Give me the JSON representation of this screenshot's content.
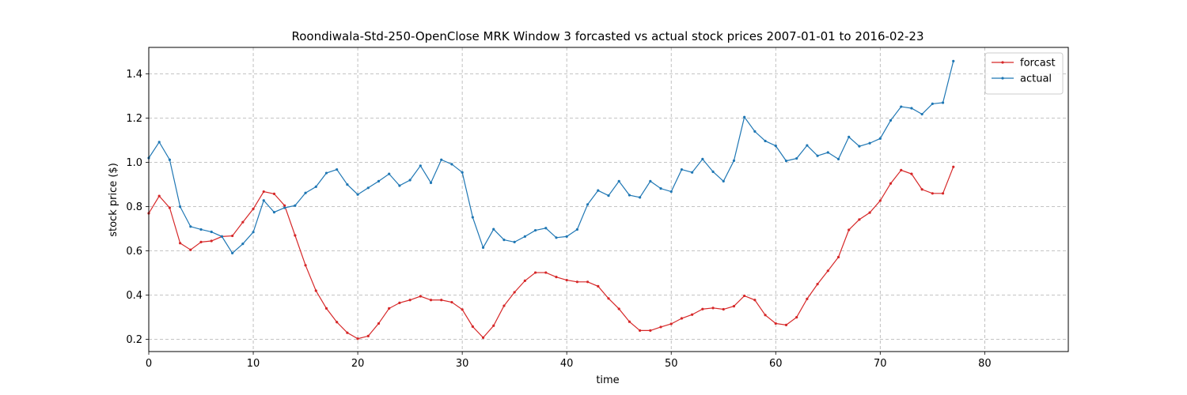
{
  "chart_data": {
    "type": "line",
    "title": "Roondiwala-Std-250-OpenClose MRK Window 3 forcasted vs actual stock prices 2007-01-01 to 2016-02-23",
    "xlabel": "time",
    "ylabel": "stock price ($)",
    "xlim": [
      0,
      88
    ],
    "ylim": [
      0.145,
      1.52
    ],
    "xticks": [
      0,
      10,
      20,
      30,
      40,
      50,
      60,
      70,
      80
    ],
    "yticks": [
      0.2,
      0.4,
      0.6,
      0.8,
      1.0,
      1.2,
      1.4
    ],
    "ytick_labels": [
      "0.2",
      "0.4",
      "0.6",
      "0.8",
      "1.0",
      "1.2",
      "1.4"
    ],
    "grid": true,
    "legend_position": "top-right",
    "series": [
      {
        "name": "forcast",
        "color": "#d62728",
        "values": [
          0.77,
          0.848,
          0.795,
          0.635,
          0.605,
          0.64,
          0.645,
          0.665,
          0.668,
          0.73,
          0.79,
          0.868,
          0.858,
          0.805,
          0.67,
          0.535,
          0.42,
          0.34,
          0.278,
          0.23,
          0.203,
          0.215,
          0.272,
          0.34,
          0.365,
          0.378,
          0.395,
          0.378,
          0.378,
          0.368,
          0.335,
          0.258,
          0.208,
          0.262,
          0.352,
          0.413,
          0.465,
          0.502,
          0.502,
          0.482,
          0.468,
          0.46,
          0.46,
          0.44,
          0.385,
          0.338,
          0.28,
          0.24,
          0.24,
          0.256,
          0.27,
          0.295,
          0.312,
          0.337,
          0.342,
          0.336,
          0.35,
          0.397,
          0.378,
          0.31,
          0.272,
          0.265,
          0.3,
          0.383,
          0.45,
          0.51,
          0.572,
          0.695,
          0.742,
          0.773,
          0.827,
          0.905,
          0.965,
          0.948,
          0.878,
          0.86,
          0.86,
          0.98
        ]
      },
      {
        "name": "actual",
        "color": "#1f77b4",
        "values": [
          1.02,
          1.092,
          1.012,
          0.8,
          0.71,
          0.697,
          0.686,
          0.665,
          0.59,
          0.632,
          0.685,
          0.828,
          0.775,
          0.795,
          0.805,
          0.862,
          0.89,
          0.952,
          0.968,
          0.9,
          0.855,
          0.885,
          0.915,
          0.948,
          0.895,
          0.92,
          0.985,
          0.908,
          1.012,
          0.992,
          0.955,
          0.752,
          0.615,
          0.698,
          0.65,
          0.64,
          0.665,
          0.693,
          0.703,
          0.66,
          0.665,
          0.697,
          0.81,
          0.873,
          0.85,
          0.915,
          0.852,
          0.842,
          0.915,
          0.882,
          0.868,
          0.968,
          0.955,
          1.015,
          0.958,
          0.915,
          1.008,
          1.205,
          1.14,
          1.097,
          1.075,
          1.007,
          1.018,
          1.077,
          1.03,
          1.045,
          1.015,
          1.115,
          1.073,
          1.087,
          1.108,
          1.19,
          1.252,
          1.245,
          1.218,
          1.265,
          1.27,
          1.458
        ]
      }
    ]
  }
}
